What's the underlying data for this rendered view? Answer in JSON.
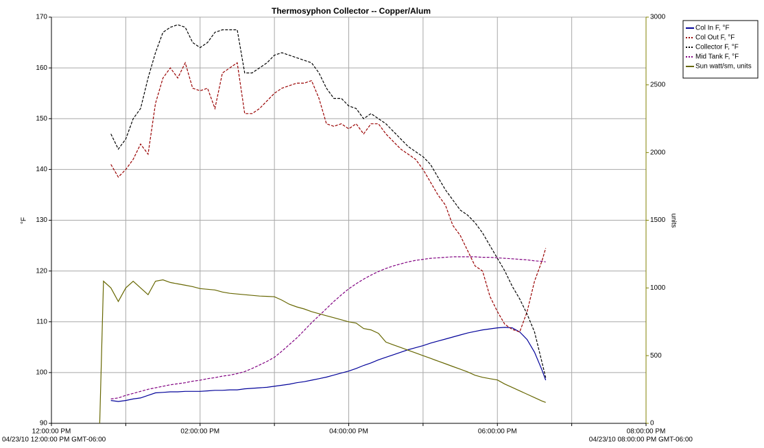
{
  "chart_data": {
    "type": "line",
    "title": "Thermosyphon Collector -- Copper/Alum",
    "y_label": "°F",
    "y2_label": "units",
    "range_start_label": "04/23/10 12:00:00 PM GMT-06:00",
    "range_end_label": "04/23/10 08:00:00 PM GMT-06:00",
    "legend": "right",
    "grid": true,
    "xlim": [
      12,
      20
    ],
    "xticks": [
      {
        "value": 12,
        "label": "12:00:00 PM"
      },
      {
        "value": 13,
        "label": null
      },
      {
        "value": 14,
        "label": "02:00:00 PM"
      },
      {
        "value": 15,
        "label": null
      },
      {
        "value": 16,
        "label": "04:00:00 PM"
      },
      {
        "value": 17,
        "label": null
      },
      {
        "value": 18,
        "label": "06:00:00 PM"
      },
      {
        "value": 19,
        "label": null
      },
      {
        "value": 20,
        "label": "08:00:00 PM"
      }
    ],
    "ylim": [
      90,
      170
    ],
    "yticks": [
      90,
      100,
      110,
      120,
      130,
      140,
      150,
      160,
      170
    ],
    "y2lim": [
      0,
      3000
    ],
    "y2ticks": [
      0,
      500,
      1000,
      1500,
      2000,
      2500,
      3000
    ],
    "y2color": "#808000",
    "x": [
      12.65,
      12.7,
      12.8,
      12.9,
      13.0,
      13.1,
      13.2,
      13.3,
      13.4,
      13.5,
      13.6,
      13.7,
      13.8,
      13.9,
      14.0,
      14.1,
      14.2,
      14.3,
      14.4,
      14.5,
      14.6,
      14.7,
      14.8,
      14.9,
      15.0,
      15.1,
      15.2,
      15.3,
      15.4,
      15.5,
      15.6,
      15.7,
      15.8,
      15.9,
      16.0,
      16.1,
      16.2,
      16.3,
      16.4,
      16.5,
      16.6,
      16.7,
      16.8,
      16.9,
      17.0,
      17.1,
      17.2,
      17.3,
      17.4,
      17.5,
      17.6,
      17.7,
      17.8,
      17.9,
      18.0,
      18.1,
      18.2,
      18.3,
      18.4,
      18.5,
      18.6,
      18.65
    ],
    "series": [
      {
        "name": "Col In F, °F",
        "color": "#000099",
        "line_style": "solid",
        "values": [
          null,
          null,
          94.5,
          94.3,
          94.5,
          94.8,
          95.0,
          95.5,
          96.0,
          96.1,
          96.2,
          96.2,
          96.3,
          96.3,
          96.3,
          96.4,
          96.5,
          96.5,
          96.6,
          96.6,
          96.8,
          96.9,
          97.0,
          97.1,
          97.3,
          97.5,
          97.7,
          98.0,
          98.2,
          98.5,
          98.8,
          99.1,
          99.5,
          99.9,
          100.3,
          100.8,
          101.4,
          101.9,
          102.5,
          103.0,
          103.5,
          104.0,
          104.5,
          104.9,
          105.3,
          105.8,
          106.2,
          106.6,
          107.0,
          107.4,
          107.8,
          108.1,
          108.4,
          108.6,
          108.8,
          108.9,
          108.8,
          108.0,
          106.5,
          104.0,
          100.5,
          98.5
        ]
      },
      {
        "name": "Col Out F, °F",
        "color": "#990000",
        "line_style": "dashed",
        "values": [
          null,
          null,
          141,
          138.5,
          140,
          142,
          145,
          143,
          153,
          158,
          160,
          158,
          161,
          156,
          155.5,
          156,
          152,
          159,
          160,
          161,
          151,
          151,
          152,
          153.5,
          155,
          156,
          156.5,
          157,
          157,
          157.5,
          154,
          149,
          148.5,
          149,
          148,
          149,
          147,
          149,
          149,
          147,
          145.5,
          144,
          143,
          142,
          140,
          137.5,
          135,
          133,
          129,
          127,
          124,
          121,
          120,
          115,
          112,
          109.5,
          108.5,
          108,
          112,
          118,
          122,
          124.5
        ]
      },
      {
        "name": "Collector F, °F",
        "color": "#000000",
        "line_style": "dashed",
        "values": [
          null,
          null,
          147,
          144,
          146,
          150,
          152,
          158,
          163,
          167,
          168,
          168.5,
          168,
          165,
          164,
          165,
          167,
          167.5,
          167.5,
          167.5,
          159,
          159,
          160,
          161,
          162.5,
          163,
          162.5,
          162,
          161.5,
          161,
          159,
          156,
          154,
          154,
          152.5,
          152,
          150,
          151,
          150,
          149,
          147.5,
          146,
          144.5,
          143.5,
          142.5,
          141,
          138.5,
          136,
          134,
          132,
          131,
          129.5,
          127.5,
          125,
          122.5,
          120,
          117,
          114.5,
          111.5,
          108,
          102,
          99
        ]
      },
      {
        "name": "Mid Tank F, °F",
        "color": "#800080",
        "line_style": "dashed",
        "values": [
          null,
          null,
          94.8,
          95.0,
          95.5,
          95.9,
          96.3,
          96.7,
          97.0,
          97.3,
          97.6,
          97.8,
          98.0,
          98.3,
          98.5,
          98.8,
          99.0,
          99.3,
          99.5,
          99.8,
          100.2,
          100.8,
          101.5,
          102.2,
          103.0,
          104.2,
          105.5,
          106.8,
          108.3,
          109.8,
          111.2,
          112.6,
          114.0,
          115.3,
          116.5,
          117.5,
          118.4,
          119.2,
          119.9,
          120.5,
          121.0,
          121.4,
          121.8,
          122.1,
          122.3,
          122.5,
          122.6,
          122.7,
          122.8,
          122.8,
          122.8,
          122.8,
          122.7,
          122.7,
          122.6,
          122.5,
          122.4,
          122.3,
          122.2,
          122.0,
          121.9,
          121.8
        ]
      },
      {
        "name": "Sun watt/sm, units",
        "color": "#666600",
        "line_style": "solid",
        "axis": "y2",
        "values": [
          0,
          1050,
          1000,
          900,
          1000,
          1050,
          1000,
          950,
          1050,
          1060,
          1040,
          1030,
          1020,
          1010,
          995,
          990,
          985,
          970,
          960,
          955,
          950,
          945,
          940,
          938,
          935,
          910,
          880,
          860,
          845,
          825,
          810,
          795,
          780,
          765,
          750,
          740,
          700,
          690,
          665,
          600,
          580,
          560,
          540,
          520,
          500,
          480,
          460,
          440,
          420,
          400,
          380,
          355,
          340,
          330,
          320,
          290,
          265,
          240,
          215,
          190,
          165,
          155
        ]
      }
    ]
  }
}
